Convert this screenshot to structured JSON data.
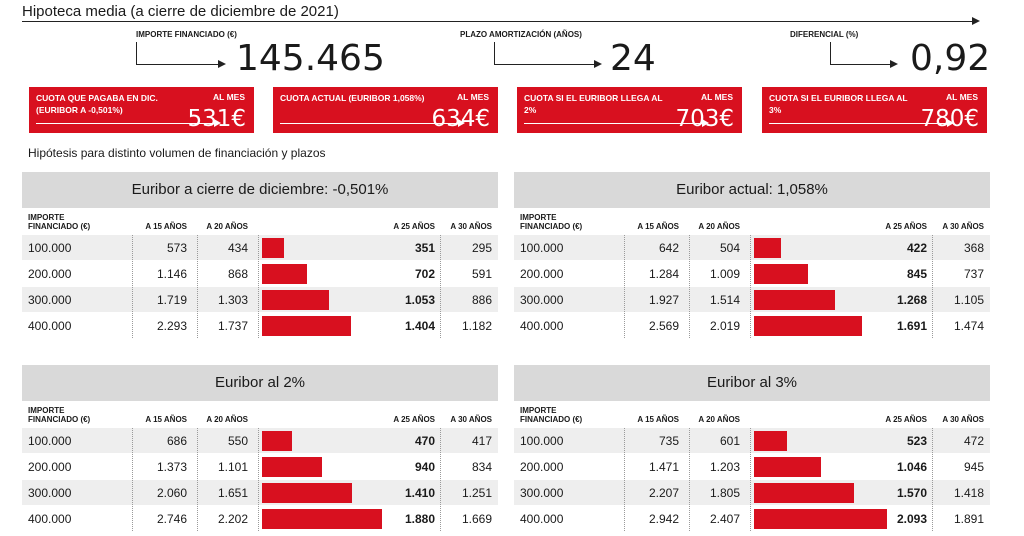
{
  "header": {
    "title": "Hipoteca media (a cierre de diciembre de 2021)",
    "metrics": [
      {
        "label": "IMPORTE FINANCIADO (€)",
        "value": "145.465"
      },
      {
        "label": "PLAZO AMORTIZACIÓN (AÑOS)",
        "value": "24"
      },
      {
        "label": "DIFERENCIAL (%)",
        "value": "0,92"
      }
    ]
  },
  "boxes": [
    {
      "label": "CUOTA QUE PAGABA EN DIC. (EURIBOR A -0,501%)",
      "unit": "AL MES",
      "value": "531€"
    },
    {
      "label": "CUOTA ACTUAL (EURIBOR 1,058%)",
      "unit": "AL MES",
      "value": "634€"
    },
    {
      "label": "CUOTA SI EL EURIBOR LLEGA AL 2%",
      "unit": "AL MES",
      "value": "703€"
    },
    {
      "label": "CUOTA SI EL EURIBOR LLEGA AL 3%",
      "unit": "AL MES",
      "value": "780€"
    }
  ],
  "subtitle": "Hipótesis para distinto volumen de financiación y plazos",
  "colors": {
    "accent": "#d8101f",
    "panel_header": "#d9d9d9",
    "row_alt": "#eeeeee"
  },
  "chart_data": [
    {
      "type": "table",
      "title": "Euribor a cierre de diciembre: -0,501%",
      "columns": [
        "IMPORTE FINANCIADO (€)",
        "A 15 AÑOS",
        "A 20 AÑOS",
        "A 25 AÑOS",
        "A 30 AÑOS"
      ],
      "rows": [
        [
          "100.000",
          "573",
          "434",
          "351",
          "295"
        ],
        [
          "200.000",
          "1.146",
          "868",
          "702",
          "591"
        ],
        [
          "300.000",
          "1.719",
          "1.303",
          "1.053",
          "886"
        ],
        [
          "400.000",
          "2.293",
          "1.737",
          "1.404",
          "1.182"
        ]
      ],
      "bar_values": [
        351,
        702,
        1053,
        1404
      ]
    },
    {
      "type": "table",
      "title": "Euribor actual: 1,058%",
      "columns": [
        "IMPORTE FINANCIADO (€)",
        "A 15 AÑOS",
        "A 20 AÑOS",
        "A 25 AÑOS",
        "A 30 AÑOS"
      ],
      "rows": [
        [
          "100.000",
          "642",
          "504",
          "422",
          "368"
        ],
        [
          "200.000",
          "1.284",
          "1.009",
          "845",
          "737"
        ],
        [
          "300.000",
          "1.927",
          "1.514",
          "1.268",
          "1.105"
        ],
        [
          "400.000",
          "2.569",
          "2.019",
          "1.691",
          "1.474"
        ]
      ],
      "bar_values": [
        422,
        845,
        1268,
        1691
      ]
    },
    {
      "type": "table",
      "title": "Euribor al 2%",
      "columns": [
        "IMPORTE FINANCIADO (€)",
        "A 15 AÑOS",
        "A 20 AÑOS",
        "A 25 AÑOS",
        "A 30 AÑOS"
      ],
      "rows": [
        [
          "100.000",
          "686",
          "550",
          "470",
          "417"
        ],
        [
          "200.000",
          "1.373",
          "1.101",
          "940",
          "834"
        ],
        [
          "300.000",
          "2.060",
          "1.651",
          "1.410",
          "1.251"
        ],
        [
          "400.000",
          "2.746",
          "2.202",
          "1.880",
          "1.669"
        ]
      ],
      "bar_values": [
        470,
        940,
        1410,
        1880
      ]
    },
    {
      "type": "table",
      "title": "Euribor al 3%",
      "columns": [
        "IMPORTE FINANCIADO (€)",
        "A 15 AÑOS",
        "A 20 AÑOS",
        "A 25 AÑOS",
        "A 30 AÑOS"
      ],
      "rows": [
        [
          "100.000",
          "735",
          "601",
          "523",
          "472"
        ],
        [
          "200.000",
          "1.471",
          "1.203",
          "1.046",
          "945"
        ],
        [
          "300.000",
          "2.207",
          "1.805",
          "1.570",
          "1.418"
        ],
        [
          "400.000",
          "2.942",
          "2.407",
          "2.093",
          "1.891"
        ]
      ],
      "bar_values": [
        523,
        1046,
        1570,
        2093
      ]
    }
  ]
}
